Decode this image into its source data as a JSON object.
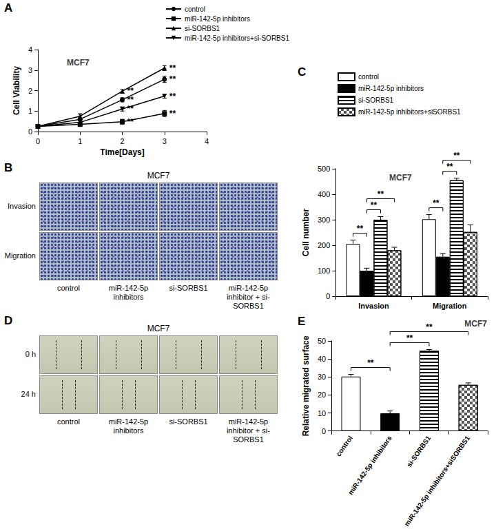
{
  "chart_data": [
    {
      "panel": "A",
      "type": "line",
      "title": "MCF7",
      "x_label": "Time[Days]",
      "y_label": "Cell Viability",
      "x": [
        0,
        1,
        2,
        3
      ],
      "xlim": [
        0,
        4
      ],
      "xticks": [
        0,
        1,
        2,
        3,
        4
      ],
      "ylim": [
        0,
        4
      ],
      "yticks": [
        0,
        1,
        2,
        3,
        4
      ],
      "grid": false,
      "legend": "upper right",
      "significance": {
        "text": "**",
        "x": [
          2,
          3
        ]
      },
      "series": [
        {
          "name": "control",
          "color": "#000000",
          "marker": "circle",
          "values": [
            0.25,
            0.6,
            1.55,
            2.55
          ],
          "errors": [
            0.03,
            0.25,
            0.1,
            0.15
          ]
        },
        {
          "name": "miR-142-5p inhibitors",
          "color": "#000000",
          "marker": "square",
          "values": [
            0.25,
            0.35,
            0.48,
            0.88
          ],
          "errors": [
            0.03,
            0.1,
            0.12,
            0.15
          ]
        },
        {
          "name": "si-SORBS1",
          "color": "#000000",
          "marker": "triangle",
          "values": [
            0.25,
            0.75,
            1.97,
            3.1
          ],
          "errors": [
            0.03,
            0.12,
            0.08,
            0.12
          ]
        },
        {
          "name": "miR-142-5p inhibitors+si-SORBS1",
          "color": "#000000",
          "marker": "triangle-down",
          "values": [
            0.25,
            0.45,
            1.1,
            1.73
          ],
          "errors": [
            0.03,
            0.15,
            0.1,
            0.1
          ]
        }
      ]
    },
    {
      "panel": "C",
      "type": "bar",
      "title": "MCF7",
      "y_label": "Cell number",
      "categories": [
        "Invasion",
        "Migration"
      ],
      "ylim": [
        0,
        500
      ],
      "yticks": [
        0,
        100,
        200,
        300,
        400,
        500
      ],
      "grid": false,
      "legend": "top",
      "series": [
        {
          "name": "control",
          "color": "#ffffff",
          "values": [
            205,
            302
          ],
          "errors": [
            15,
            18
          ]
        },
        {
          "name": "miR-142-5p inhibitors",
          "color": "#000000",
          "values": [
            100,
            155
          ],
          "errors": [
            10,
            12
          ]
        },
        {
          "name": "si-SORBS1",
          "color": "#ffffff",
          "values": [
            300,
            455
          ],
          "errors": [
            12,
            8
          ]
        },
        {
          "name": "miR-142-5p inhibitors+siSORBS1",
          "color": "#ffffff",
          "values": [
            180,
            252
          ],
          "errors": [
            12,
            28
          ]
        }
      ],
      "comparisons": [
        {
          "category": "Invasion",
          "pair": [
            "control",
            "miR-142-5p inhibitors"
          ],
          "text": "**"
        },
        {
          "category": "Invasion",
          "pair": [
            "miR-142-5p inhibitors",
            "si-SORBS1"
          ],
          "text": "**"
        },
        {
          "category": "Invasion",
          "pair": [
            "miR-142-5p inhibitors",
            "miR-142-5p inhibitors+siSORBS1"
          ],
          "text": "**"
        },
        {
          "category": "Migration",
          "pair": [
            "control",
            "miR-142-5p inhibitors"
          ],
          "text": "**"
        },
        {
          "category": "Migration",
          "pair": [
            "miR-142-5p inhibitors",
            "si-SORBS1"
          ],
          "text": "**"
        },
        {
          "category": "Migration",
          "pair": [
            "miR-142-5p inhibitors",
            "miR-142-5p inhibitors+siSORBS1"
          ],
          "text": "**"
        }
      ]
    },
    {
      "panel": "E",
      "type": "bar",
      "title": "MCF7",
      "y_label": "Relative migrated surface",
      "categories": [
        "control",
        "miR-142-5p inhibitors",
        "si-SORBS1",
        "miR-142-5p inhibitors+siSORBS1"
      ],
      "values": [
        30.2,
        9.8,
        44.6,
        25.6
      ],
      "errors": [
        1.2,
        1.3,
        0.6,
        1.1
      ],
      "colors": [
        "#ffffff",
        "#000000",
        "#ffffff",
        "#ffffff"
      ],
      "ylim": [
        0,
        50
      ],
      "yticks": [
        0,
        10,
        20,
        30,
        40,
        50
      ],
      "grid": false,
      "comparisons": [
        {
          "pair": [
            "control",
            "miR-142-5p inhibitors"
          ],
          "text": "**"
        },
        {
          "pair": [
            "miR-142-5p inhibitors",
            "si-SORBS1"
          ],
          "text": "**"
        },
        {
          "pair": [
            "miR-142-5p inhibitors",
            "miR-142-5p inhibitors+siSORBS1"
          ],
          "text": "**"
        }
      ]
    }
  ],
  "image_panels": [
    {
      "panel": "B",
      "title": "MCF7",
      "rows": [
        "Invasion",
        "Migration"
      ],
      "columns": [
        "control",
        "miR-142-5p inhibitors",
        "si-SORBS1",
        "miR-142-5p inhibitor + si-SORBS1"
      ]
    },
    {
      "panel": "D",
      "title": "MCF7",
      "rows": [
        "0 h",
        "24 h"
      ],
      "columns": [
        "control",
        "miR-142-5p inhibitors",
        "si-SORBS1",
        "miR-142-5p inhibitor + si-SORBS1"
      ]
    }
  ]
}
